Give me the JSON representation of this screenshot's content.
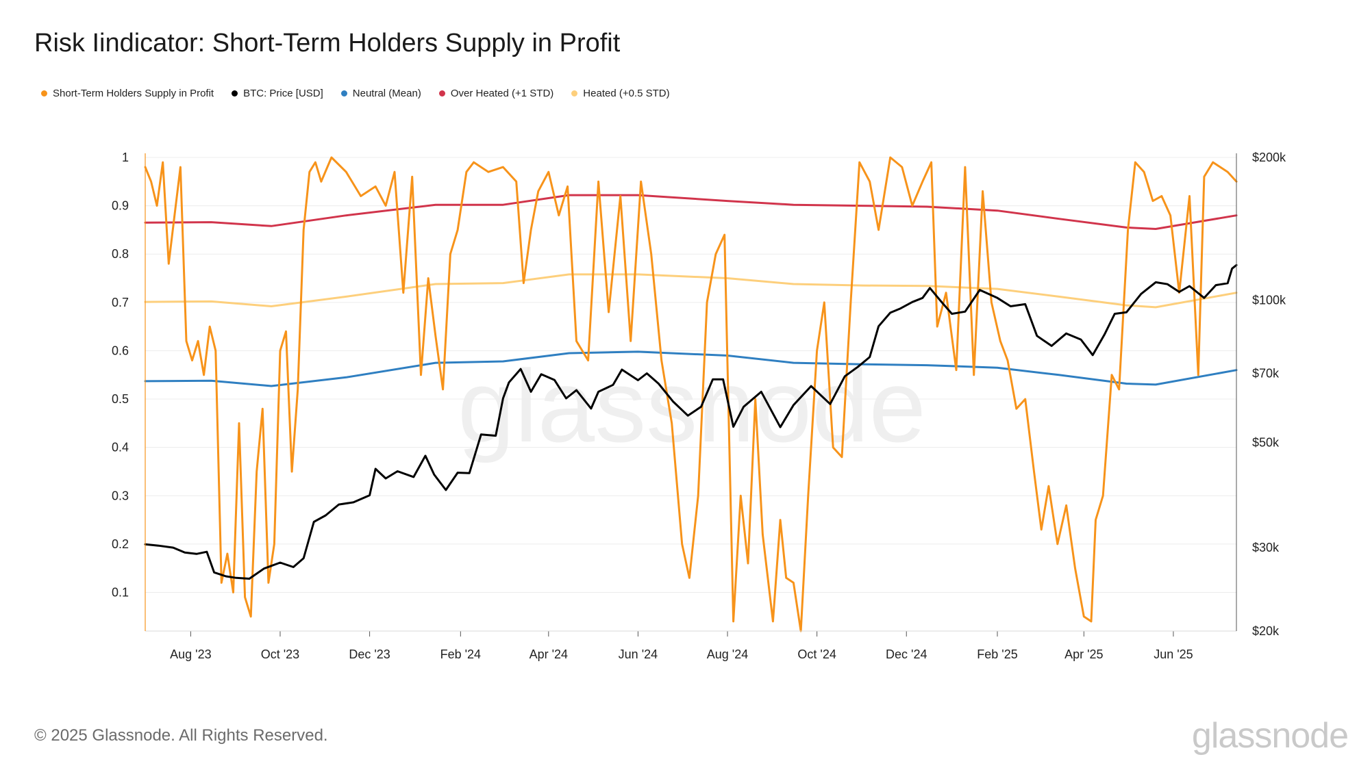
{
  "title": "Risk Iindicator: Short-Term Holders Supply in Profit",
  "footer": {
    "copyright": "© 2025 Glassnode. All Rights Reserved.",
    "brand": "glassnode"
  },
  "watermark": "glassnode",
  "chart_data": {
    "type": "line",
    "title": "Risk Iindicator: Short-Term Holders Supply in Profit",
    "xlabel": "",
    "ylabel": "",
    "x_range": [
      "2023-07-01",
      "2025-07-14"
    ],
    "x_ticks": [
      "Aug '23",
      "Oct '23",
      "Dec '23",
      "Feb '24",
      "Apr '24",
      "Jun '24",
      "Aug '24",
      "Oct '24",
      "Dec '24",
      "Feb '25",
      "Apr '25",
      "Jun '25"
    ],
    "y_left": {
      "ylim": [
        0.02,
        1.0
      ],
      "ticks": [
        "1",
        "0.9",
        "0.8",
        "0.7",
        "0.6",
        "0.5",
        "0.4",
        "0.3",
        "0.2",
        "0.1"
      ],
      "tick_values": [
        1,
        0.9,
        0.8,
        0.7,
        0.6,
        0.5,
        0.4,
        0.3,
        0.2,
        0.1
      ]
    },
    "y_right": {
      "scale": "log",
      "ylim": [
        20000,
        200000
      ],
      "ticks": [
        "$200k",
        "$100k",
        "$70k",
        "$50k",
        "$30k",
        "$20k"
      ],
      "tick_values": [
        200000,
        100000,
        70000,
        50000,
        30000,
        20000
      ]
    },
    "grid": true,
    "legend_placement": "top-left",
    "legend": [
      {
        "label": "Short-Term Holders Supply in Profit",
        "color": "#f7931a"
      },
      {
        "label": "BTC: Price [USD]",
        "color": "#000000"
      },
      {
        "label": "Neutral (Mean)",
        "color": "#2f7fc1"
      },
      {
        "label": "Over Heated (+1 STD)",
        "color": "#d1344b"
      },
      {
        "label": "Heated (+0.5 STD)",
        "color": "#fdcf7c"
      }
    ],
    "series": [
      {
        "name": "Short-Term Holders Supply in Profit",
        "axis": "left",
        "color": "#f7931a",
        "x": [
          "2023-07-01",
          "2023-07-05",
          "2023-07-09",
          "2023-07-13",
          "2023-07-17",
          "2023-07-21",
          "2023-07-25",
          "2023-07-29",
          "2023-08-02",
          "2023-08-06",
          "2023-08-10",
          "2023-08-14",
          "2023-08-18",
          "2023-08-22",
          "2023-08-26",
          "2023-08-30",
          "2023-09-03",
          "2023-09-07",
          "2023-09-11",
          "2023-09-15",
          "2023-09-19",
          "2023-09-23",
          "2023-09-27",
          "2023-10-01",
          "2023-10-05",
          "2023-10-09",
          "2023-10-13",
          "2023-10-17",
          "2023-10-21",
          "2023-10-25",
          "2023-10-29",
          "2023-11-05",
          "2023-11-15",
          "2023-11-25",
          "2023-12-05",
          "2023-12-12",
          "2023-12-18",
          "2023-12-24",
          "2023-12-30",
          "2024-01-05",
          "2024-01-10",
          "2024-01-15",
          "2024-01-20",
          "2024-01-25",
          "2024-01-30",
          "2024-02-05",
          "2024-02-10",
          "2024-02-20",
          "2024-03-01",
          "2024-03-10",
          "2024-03-15",
          "2024-03-20",
          "2024-03-25",
          "2024-04-01",
          "2024-04-08",
          "2024-04-14",
          "2024-04-20",
          "2024-04-28",
          "2024-05-05",
          "2024-05-12",
          "2024-05-20",
          "2024-05-27",
          "2024-06-03",
          "2024-06-10",
          "2024-06-17",
          "2024-06-24",
          "2024-07-01",
          "2024-07-06",
          "2024-07-12",
          "2024-07-18",
          "2024-07-24",
          "2024-07-30",
          "2024-08-05",
          "2024-08-10",
          "2024-08-15",
          "2024-08-20",
          "2024-08-25",
          "2024-09-01",
          "2024-09-06",
          "2024-09-10",
          "2024-09-15",
          "2024-09-20",
          "2024-09-25",
          "2024-10-01",
          "2024-10-06",
          "2024-10-12",
          "2024-10-18",
          "2024-10-24",
          "2024-10-30",
          "2024-11-06",
          "2024-11-12",
          "2024-11-20",
          "2024-11-28",
          "2024-12-05",
          "2024-12-12",
          "2024-12-18",
          "2024-12-22",
          "2024-12-28",
          "2025-01-04",
          "2025-01-10",
          "2025-01-16",
          "2025-01-22",
          "2025-01-28",
          "2025-02-03",
          "2025-02-08",
          "2025-02-14",
          "2025-02-20",
          "2025-02-26",
          "2025-03-03",
          "2025-03-08",
          "2025-03-14",
          "2025-03-20",
          "2025-03-26",
          "2025-04-01",
          "2025-04-06",
          "2025-04-09",
          "2025-04-14",
          "2025-04-20",
          "2025-04-25",
          "2025-05-01",
          "2025-05-06",
          "2025-05-12",
          "2025-05-18",
          "2025-05-24",
          "2025-05-30",
          "2025-06-05",
          "2025-06-12",
          "2025-06-18",
          "2025-06-22",
          "2025-06-28",
          "2025-07-03",
          "2025-07-08",
          "2025-07-14"
        ],
        "values": [
          0.98,
          0.95,
          0.9,
          0.99,
          0.78,
          0.88,
          0.98,
          0.62,
          0.58,
          0.62,
          0.55,
          0.65,
          0.6,
          0.12,
          0.18,
          0.1,
          0.45,
          0.09,
          0.05,
          0.35,
          0.48,
          0.12,
          0.2,
          0.6,
          0.64,
          0.35,
          0.52,
          0.85,
          0.97,
          0.99,
          0.95,
          1.0,
          0.97,
          0.92,
          0.94,
          0.9,
          0.97,
          0.72,
          0.96,
          0.55,
          0.75,
          0.63,
          0.52,
          0.8,
          0.85,
          0.97,
          0.99,
          0.97,
          0.98,
          0.95,
          0.74,
          0.85,
          0.93,
          0.97,
          0.88,
          0.94,
          0.62,
          0.58,
          0.95,
          0.68,
          0.92,
          0.62,
          0.95,
          0.8,
          0.58,
          0.45,
          0.2,
          0.13,
          0.3,
          0.7,
          0.8,
          0.84,
          0.04,
          0.3,
          0.16,
          0.5,
          0.22,
          0.04,
          0.25,
          0.13,
          0.12,
          0.02,
          0.3,
          0.6,
          0.7,
          0.4,
          0.38,
          0.7,
          0.99,
          0.95,
          0.85,
          1.0,
          0.98,
          0.9,
          0.95,
          0.99,
          0.65,
          0.72,
          0.56,
          0.98,
          0.55,
          0.93,
          0.7,
          0.62,
          0.58,
          0.48,
          0.5,
          0.35,
          0.23,
          0.32,
          0.2,
          0.28,
          0.15,
          0.05,
          0.04,
          0.25,
          0.3,
          0.55,
          0.52,
          0.85,
          0.99,
          0.97,
          0.91,
          0.92,
          0.88,
          0.72,
          0.92,
          0.55,
          0.96,
          0.99,
          0.98,
          0.97,
          0.95
        ]
      },
      {
        "name": "BTC: Price [USD]",
        "axis": "right",
        "color": "#000000",
        "x": [
          "2023-07-01",
          "2023-07-10",
          "2023-07-20",
          "2023-07-28",
          "2023-08-05",
          "2023-08-12",
          "2023-08-17",
          "2023-08-25",
          "2023-09-01",
          "2023-09-10",
          "2023-09-20",
          "2023-10-01",
          "2023-10-10",
          "2023-10-17",
          "2023-10-24",
          "2023-11-01",
          "2023-11-10",
          "2023-11-20",
          "2023-12-01",
          "2023-12-05",
          "2023-12-12",
          "2023-12-20",
          "2023-12-31",
          "2024-01-08",
          "2024-01-14",
          "2024-01-22",
          "2024-01-30",
          "2024-02-07",
          "2024-02-15",
          "2024-02-25",
          "2024-03-01",
          "2024-03-05",
          "2024-03-13",
          "2024-03-20",
          "2024-03-27",
          "2024-04-05",
          "2024-04-13",
          "2024-04-20",
          "2024-04-30",
          "2024-05-05",
          "2024-05-15",
          "2024-05-21",
          "2024-06-01",
          "2024-06-07",
          "2024-06-15",
          "2024-06-25",
          "2024-07-05",
          "2024-07-14",
          "2024-07-22",
          "2024-07-29",
          "2024-08-05",
          "2024-08-12",
          "2024-08-24",
          "2024-09-06",
          "2024-09-15",
          "2024-09-27",
          "2024-10-10",
          "2024-10-20",
          "2024-10-29",
          "2024-11-06",
          "2024-11-12",
          "2024-11-20",
          "2024-11-27",
          "2024-12-05",
          "2024-12-12",
          "2024-12-17",
          "2024-12-25",
          "2025-01-01",
          "2025-01-10",
          "2025-01-20",
          "2025-02-01",
          "2025-02-10",
          "2025-02-20",
          "2025-02-28",
          "2025-03-10",
          "2025-03-20",
          "2025-03-30",
          "2025-04-07",
          "2025-04-15",
          "2025-04-22",
          "2025-04-30",
          "2025-05-10",
          "2025-05-20",
          "2025-05-28",
          "2025-06-05",
          "2025-06-12",
          "2025-06-22",
          "2025-06-30",
          "2025-07-08",
          "2025-07-11",
          "2025-07-14"
        ],
        "values": [
          30500,
          30300,
          30000,
          29300,
          29100,
          29400,
          26600,
          26100,
          25900,
          25800,
          27100,
          27900,
          27300,
          28500,
          34000,
          35100,
          37000,
          37400,
          38700,
          44000,
          42000,
          43500,
          42300,
          46900,
          42800,
          39700,
          43200,
          43100,
          52000,
          51700,
          62000,
          67000,
          71500,
          64000,
          69700,
          67800,
          62000,
          64500,
          59000,
          64000,
          66200,
          71300,
          67700,
          70000,
          66600,
          61000,
          57000,
          59500,
          68000,
          68000,
          54000,
          59500,
          64000,
          53900,
          60000,
          65800,
          60300,
          69000,
          72300,
          75800,
          88000,
          94000,
          96000,
          99000,
          101000,
          106000,
          99000,
          93500,
          94500,
          105000,
          101000,
          97000,
          98000,
          84000,
          80000,
          85000,
          82500,
          76500,
          84500,
          93500,
          94200,
          103000,
          109000,
          108000,
          104000,
          107000,
          101000,
          107500,
          108500,
          116500,
          118500
        ]
      },
      {
        "name": "Neutral (Mean)",
        "axis": "left",
        "color": "#2f7fc1",
        "x": [
          "2023-07-01",
          "2023-08-15",
          "2023-09-25",
          "2023-11-15",
          "2024-01-15",
          "2024-03-01",
          "2024-04-15",
          "2024-06-01",
          "2024-08-01",
          "2024-09-15",
          "2024-11-01",
          "2024-12-15",
          "2025-02-01",
          "2025-03-15",
          "2025-04-30",
          "2025-05-20",
          "2025-07-14"
        ],
        "values": [
          0.537,
          0.538,
          0.527,
          0.545,
          0.575,
          0.578,
          0.595,
          0.598,
          0.59,
          0.575,
          0.572,
          0.57,
          0.565,
          0.55,
          0.532,
          0.53,
          0.56
        ]
      },
      {
        "name": "Over Heated (+1 STD)",
        "axis": "left",
        "color": "#d1344b",
        "x": [
          "2023-07-01",
          "2023-08-15",
          "2023-09-25",
          "2023-11-15",
          "2024-01-15",
          "2024-03-01",
          "2024-04-15",
          "2024-06-01",
          "2024-08-01",
          "2024-09-15",
          "2024-11-01",
          "2024-12-15",
          "2025-02-01",
          "2025-03-15",
          "2025-04-30",
          "2025-05-20",
          "2025-07-14"
        ],
        "values": [
          0.865,
          0.866,
          0.858,
          0.88,
          0.902,
          0.902,
          0.922,
          0.922,
          0.91,
          0.902,
          0.9,
          0.898,
          0.89,
          0.873,
          0.855,
          0.852,
          0.88
        ]
      },
      {
        "name": "Heated (+0.5 STD)",
        "axis": "left",
        "color": "#fdcf7c",
        "x": [
          "2023-07-01",
          "2023-08-15",
          "2023-09-25",
          "2023-11-15",
          "2024-01-15",
          "2024-03-01",
          "2024-04-15",
          "2024-06-01",
          "2024-08-01",
          "2024-09-15",
          "2024-11-01",
          "2024-12-15",
          "2025-02-01",
          "2025-03-15",
          "2025-04-30",
          "2025-05-20",
          "2025-07-14"
        ],
        "values": [
          0.701,
          0.702,
          0.692,
          0.712,
          0.738,
          0.74,
          0.758,
          0.758,
          0.75,
          0.738,
          0.735,
          0.734,
          0.728,
          0.712,
          0.694,
          0.69,
          0.72
        ]
      }
    ]
  }
}
